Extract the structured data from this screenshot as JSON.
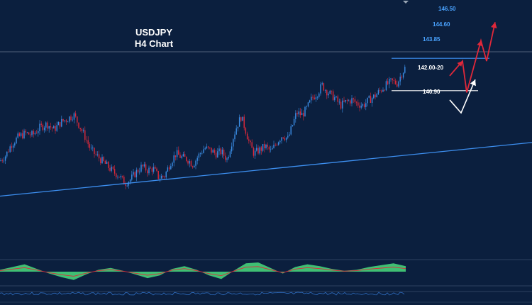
{
  "chart_data": {
    "type": "candlestick",
    "symbol": "USDJPY",
    "timeframe": "H4 Chart",
    "title_lines": [
      "USDJPY",
      "H4 Chart"
    ],
    "colors": {
      "background": "#0b1f3e",
      "bull": "#3b8ee6",
      "bear": "#e0283a",
      "trendline": "#3d8ff0",
      "resistance": "#3d8ff0",
      "support": "#ffffff",
      "level_text_blue": "#4aa3ff",
      "level_text_white": "#ffffff",
      "osc_fill": "#3fbf73",
      "osc_line": "#e0283a"
    },
    "levels": [
      {
        "label": "146.50",
        "kind": "target",
        "color": "blue"
      },
      {
        "label": "144.60",
        "kind": "target",
        "color": "blue"
      },
      {
        "label": "143.85",
        "kind": "resistance",
        "color": "blue"
      },
      {
        "label": "142.00-20",
        "kind": "support",
        "color": "white"
      },
      {
        "label": "140.90",
        "kind": "support",
        "color": "white"
      }
    ],
    "price_path": [
      [
        0,
        138.3
      ],
      [
        8,
        138.6
      ],
      [
        16,
        139.2
      ],
      [
        26,
        139.6
      ],
      [
        36,
        139.8
      ],
      [
        46,
        139.7
      ],
      [
        56,
        140.1
      ],
      [
        66,
        140.3
      ],
      [
        76,
        140.0
      ],
      [
        86,
        140.4
      ],
      [
        96,
        140.6
      ],
      [
        104,
        140.8
      ],
      [
        112,
        140.2
      ],
      [
        120,
        139.6
      ],
      [
        128,
        138.9
      ],
      [
        136,
        138.6
      ],
      [
        144,
        138.3
      ],
      [
        152,
        138.0
      ],
      [
        160,
        137.7
      ],
      [
        168,
        137.5
      ],
      [
        176,
        137.1
      ],
      [
        184,
        137.3
      ],
      [
        192,
        137.7
      ],
      [
        200,
        138.0
      ],
      [
        208,
        137.8
      ],
      [
        216,
        137.9
      ],
      [
        224,
        137.4
      ],
      [
        232,
        137.5
      ],
      [
        240,
        138.2
      ],
      [
        248,
        138.7
      ],
      [
        256,
        138.5
      ],
      [
        264,
        138.4
      ],
      [
        272,
        138.1
      ],
      [
        280,
        138.6
      ],
      [
        288,
        139.0
      ],
      [
        296,
        138.9
      ],
      [
        304,
        138.7
      ],
      [
        312,
        138.8
      ],
      [
        320,
        138.4
      ],
      [
        328,
        139.5
      ],
      [
        334,
        140.2
      ],
      [
        340,
        140.7
      ],
      [
        346,
        140.0
      ],
      [
        352,
        139.2
      ],
      [
        358,
        138.7
      ],
      [
        366,
        138.9
      ],
      [
        374,
        139.1
      ],
      [
        382,
        138.8
      ],
      [
        390,
        139.3
      ],
      [
        398,
        139.7
      ],
      [
        406,
        139.5
      ],
      [
        412,
        140.2
      ],
      [
        418,
        140.9
      ],
      [
        426,
        140.8
      ],
      [
        432,
        141.1
      ],
      [
        440,
        141.7
      ],
      [
        448,
        142.0
      ],
      [
        454,
        142.4
      ],
      [
        460,
        142.1
      ],
      [
        466,
        141.9
      ],
      [
        472,
        141.7
      ],
      [
        480,
        141.3
      ],
      [
        488,
        141.5
      ],
      [
        496,
        141.6
      ],
      [
        504,
        141.4
      ],
      [
        512,
        141.3
      ],
      [
        520,
        141.6
      ],
      [
        528,
        141.8
      ],
      [
        536,
        142.1
      ],
      [
        544,
        142.4
      ],
      [
        552,
        142.6
      ],
      [
        560,
        142.5
      ],
      [
        566,
        143.0
      ],
      [
        572,
        143.4
      ]
    ],
    "trendline": [
      [
        0,
        136.4
      ],
      [
        750,
        139.3
      ]
    ],
    "projection_red": [
      [
        634,
        142.9
      ],
      [
        652,
        143.7
      ],
      [
        658,
        142.0
      ],
      [
        678,
        144.8
      ],
      [
        686,
        143.7
      ],
      [
        698,
        145.8
      ]
    ],
    "projection_white": [
      [
        634,
        141.6
      ],
      [
        650,
        140.9
      ],
      [
        670,
        142.7
      ]
    ],
    "oscillator_values": [
      0.2,
      0.5,
      0.8,
      0.3,
      -0.2,
      -0.6,
      -0.9,
      -0.3,
      0.2,
      0.4,
      0.1,
      -0.3,
      -0.7,
      -0.4,
      0.3,
      0.6,
      0.2,
      -0.4,
      -0.8,
      0.1,
      0.9,
      1.0,
      0.4,
      -0.2,
      0.5,
      0.8,
      0.6,
      0.3,
      0.1,
      0.2,
      0.5,
      0.7,
      0.9,
      0.6
    ]
  }
}
